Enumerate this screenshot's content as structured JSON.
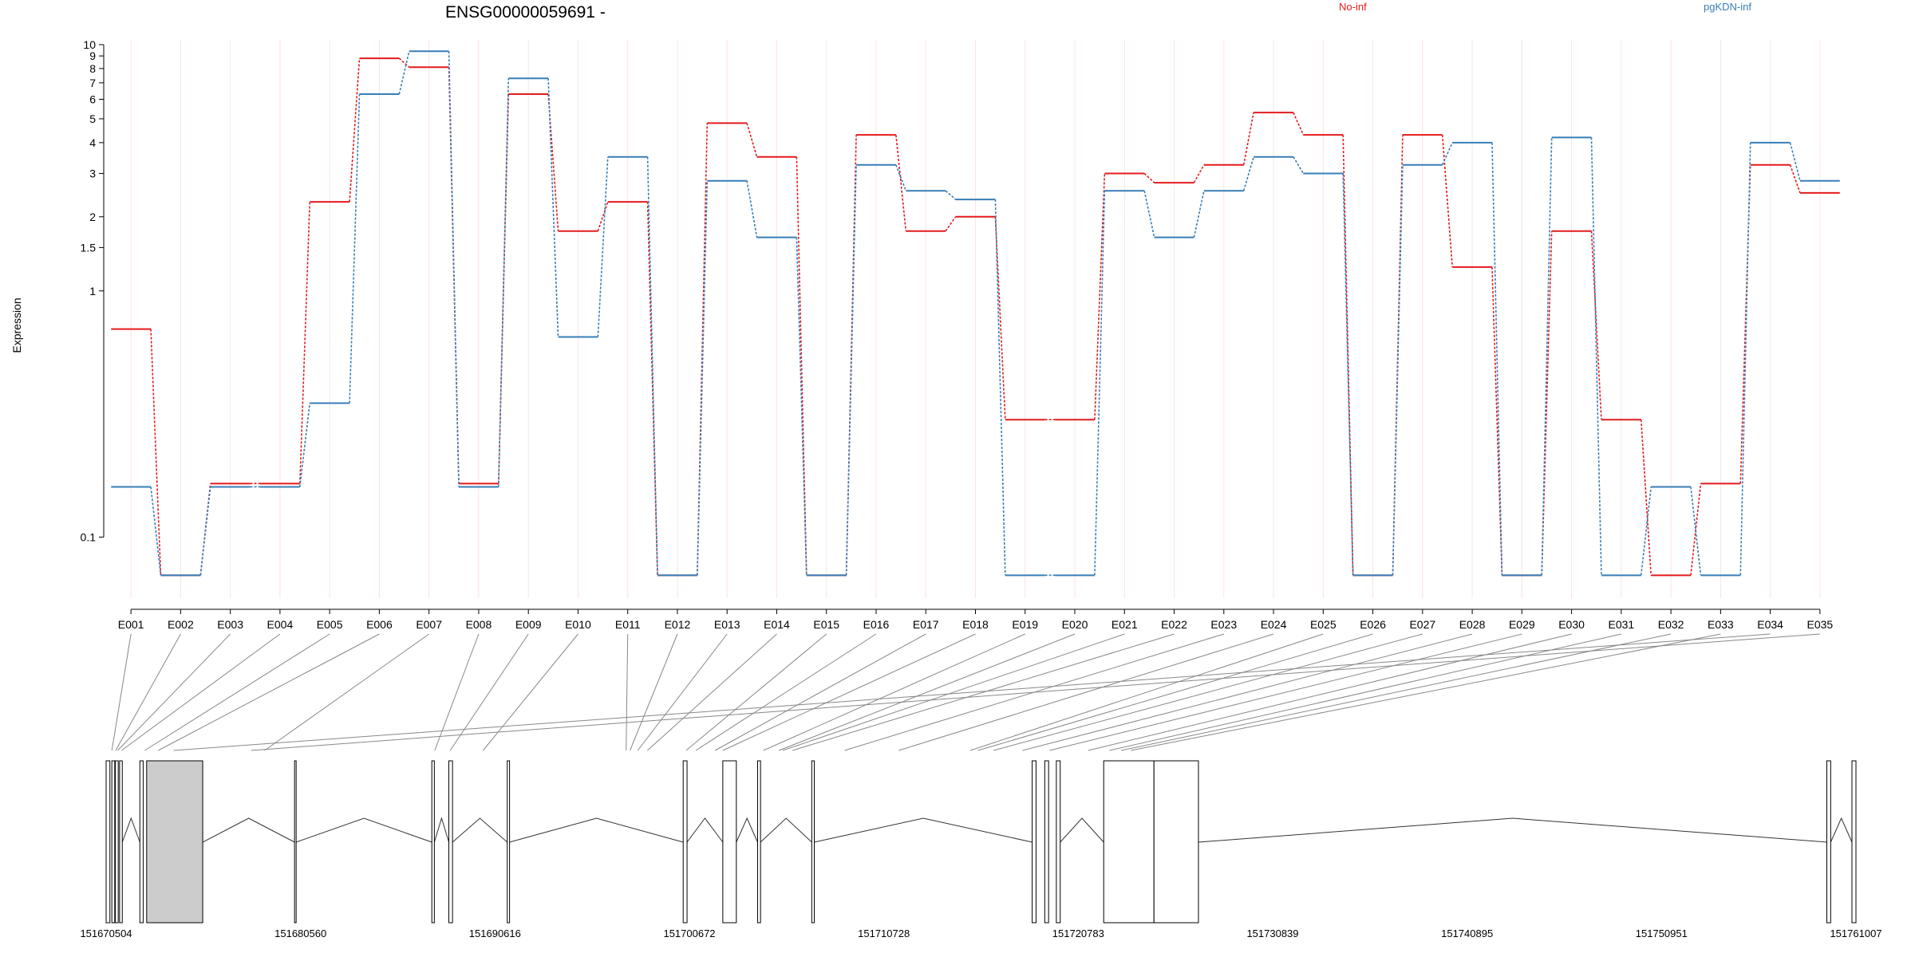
{
  "chart_data": {
    "type": "line",
    "title": "ENSG00000059691 -",
    "ylabel": "Expression",
    "yscale": "log",
    "ylim": [
      0.06,
      10
    ],
    "y_ticks": [
      0.1,
      1,
      1.5,
      2,
      3,
      4,
      5,
      6,
      7,
      8,
      9,
      10
    ],
    "categories": [
      "E001",
      "E002",
      "E003",
      "E004",
      "E005",
      "E006",
      "E007",
      "E008",
      "E009",
      "E010",
      "E011",
      "E012",
      "E013",
      "E014",
      "E015",
      "E016",
      "E017",
      "E018",
      "E019",
      "E020",
      "E021",
      "E022",
      "E023",
      "E024",
      "E025",
      "E026",
      "E027",
      "E028",
      "E029",
      "E030",
      "E031",
      "E032",
      "E033",
      "E034",
      "E035"
    ],
    "series": [
      {
        "name": "No-inf",
        "color": "#e41a1c",
        "values": [
          0.7,
          0.07,
          0.165,
          0.165,
          2.3,
          8.8,
          8.1,
          0.165,
          6.3,
          1.75,
          2.3,
          0.07,
          4.8,
          3.5,
          0.07,
          4.3,
          1.75,
          2.0,
          0.3,
          0.3,
          3.0,
          2.75,
          3.25,
          5.3,
          4.3,
          0.07,
          4.3,
          1.25,
          0.07,
          1.75,
          0.3,
          0.07,
          0.165,
          3.25,
          2.5
        ]
      },
      {
        "name": "pgKDN-inf",
        "color": "#377eb8",
        "values": [
          0.16,
          0.07,
          0.16,
          0.16,
          0.35,
          6.3,
          9.4,
          0.16,
          7.3,
          0.65,
          3.5,
          0.07,
          2.8,
          1.65,
          0.07,
          3.25,
          2.55,
          2.35,
          0.07,
          0.07,
          2.55,
          1.65,
          2.55,
          3.5,
          3.0,
          0.07,
          3.25,
          4.0,
          0.07,
          4.2,
          0.07,
          0.16,
          0.07,
          4.0,
          2.8
        ]
      }
    ],
    "genomic_axis": {
      "range": [
        151670504,
        151761007
      ],
      "ticks": [
        151670504,
        151680560,
        151690616,
        151700672,
        151710728,
        151720783,
        151730839,
        151740895,
        151750951,
        151761007
      ]
    },
    "exon_genomic_positions": [
      151670800,
      151671000,
      151671100,
      151671300,
      151672500,
      151673200,
      151678700,
      151687500,
      151688300,
      151690000,
      151697400,
      151697600,
      151698000,
      151698500,
      151700500,
      151701000,
      151702000,
      151702400,
      151704500,
      151705300,
      151705500,
      151706000,
      151708700,
      151711500,
      151715200,
      151715600,
      151716400,
      151717900,
      151719300,
      151721300,
      151722400,
      151723000,
      151723500,
      151674000,
      151678000
    ],
    "gene_blocks": [
      [
        151670504,
        151670700,
        false
      ],
      [
        151670800,
        151670950,
        false
      ],
      [
        151670980,
        151671130,
        false
      ],
      [
        151671200,
        151671340,
        false
      ],
      [
        151672250,
        151672420,
        false
      ],
      [
        151672600,
        151675500,
        true
      ],
      [
        151680250,
        151680330,
        false
      ],
      [
        151687350,
        151687480,
        false
      ],
      [
        151688230,
        151688420,
        false
      ],
      [
        151691250,
        151691370,
        false
      ],
      [
        151700350,
        151700550,
        false
      ],
      [
        151702400,
        151703100,
        false
      ],
      [
        151704200,
        151704350,
        false
      ],
      [
        151707000,
        151707130,
        false
      ],
      [
        151718400,
        151718600,
        false
      ],
      [
        151719050,
        151719250,
        false
      ],
      [
        151719650,
        151719850,
        false
      ],
      [
        151722100,
        151724700,
        false
      ],
      [
        151724700,
        151727000,
        false
      ],
      [
        151759500,
        151759700,
        false
      ],
      [
        151760800,
        151761007,
        false
      ]
    ],
    "gene_introns": [
      [
        151671340,
        151672250
      ],
      [
        151675500,
        151680250
      ],
      [
        151680330,
        151687350
      ],
      [
        151687480,
        151688230
      ],
      [
        151688420,
        151691250
      ],
      [
        151691370,
        151700350
      ],
      [
        151700550,
        151702400
      ],
      [
        151703100,
        151704200
      ],
      [
        151704350,
        151707000
      ],
      [
        151707130,
        151718400
      ],
      [
        151719850,
        151722100
      ],
      [
        151727000,
        151759500
      ],
      [
        151759700,
        151760800
      ]
    ],
    "grid": true
  }
}
